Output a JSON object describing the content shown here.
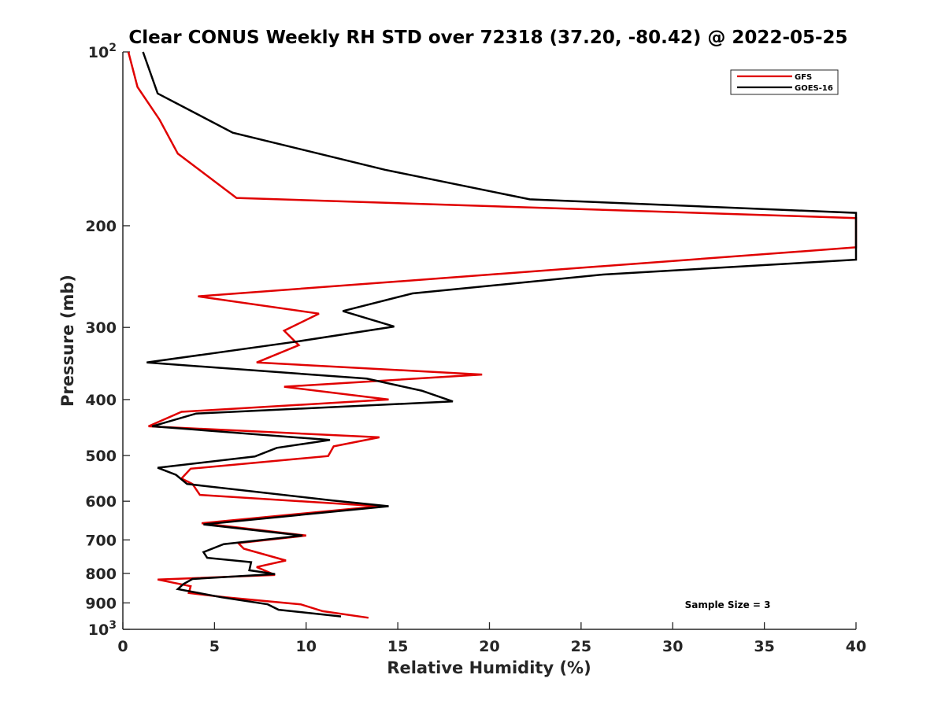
{
  "chart_data": {
    "type": "line",
    "title": "Clear CONUS Weekly RH STD over 72318 (37.20, -80.42) @ 2022-05-25",
    "xlabel": "Relative Humidity (%)",
    "ylabel": "Pressure (mb)",
    "xlim": [
      0,
      40
    ],
    "ylim": [
      100,
      1000
    ],
    "y_scale": "log",
    "y_reversed": true,
    "grid": false,
    "x_ticks": [
      "0",
      "5",
      "10",
      "15",
      "20",
      "25",
      "30",
      "35",
      "40"
    ],
    "y_ticks": [
      {
        "value": 100,
        "base": "10",
        "exp": "2"
      },
      {
        "value": 200,
        "label": "200"
      },
      {
        "value": 300,
        "label": "300"
      },
      {
        "value": 400,
        "label": "400"
      },
      {
        "value": 500,
        "label": "500"
      },
      {
        "value": 600,
        "label": "600"
      },
      {
        "value": 700,
        "label": "700"
      },
      {
        "value": 800,
        "label": "800"
      },
      {
        "value": 900,
        "label": "900"
      },
      {
        "value": 1000,
        "base": "10",
        "exp": "3"
      }
    ],
    "legend_position": "top-right",
    "series": [
      {
        "name": "GFS",
        "color": "#e00000",
        "points": [
          [
            0.3,
            100
          ],
          [
            0.8,
            115
          ],
          [
            2.0,
            131
          ],
          [
            3.0,
            150
          ],
          [
            6.2,
            179
          ],
          [
            40,
            194
          ],
          [
            40,
            218
          ],
          [
            4.1,
            265
          ],
          [
            10.7,
            284
          ],
          [
            8.8,
            304
          ],
          [
            9.6,
            322
          ],
          [
            7.3,
            345
          ],
          [
            19.6,
            362
          ],
          [
            8.8,
            380
          ],
          [
            14.5,
            400
          ],
          [
            3.2,
            420
          ],
          [
            1.4,
            445
          ],
          [
            14.0,
            465
          ],
          [
            11.5,
            482
          ],
          [
            11.2,
            501
          ],
          [
            3.7,
            527
          ],
          [
            3.2,
            548
          ],
          [
            3.8,
            560
          ],
          [
            4.2,
            585
          ],
          [
            14.0,
            612
          ],
          [
            4.3,
            655
          ],
          [
            10.0,
            688
          ],
          [
            6.3,
            709
          ],
          [
            6.6,
            725
          ],
          [
            8.9,
            760
          ],
          [
            7.3,
            780
          ],
          [
            8.3,
            805
          ],
          [
            1.9,
            820
          ],
          [
            3.7,
            842
          ],
          [
            3.6,
            865
          ],
          [
            5.6,
            880
          ],
          [
            9.7,
            905
          ],
          [
            10.9,
            930
          ],
          [
            13.4,
            955
          ]
        ]
      },
      {
        "name": "GOES-16",
        "color": "#000000",
        "points": [
          [
            1.1,
            100
          ],
          [
            1.9,
            118
          ],
          [
            6.0,
            138
          ],
          [
            14.3,
            160
          ],
          [
            22.2,
            180
          ],
          [
            40,
            190
          ],
          [
            40,
            229
          ],
          [
            26.2,
            243
          ],
          [
            15.8,
            262
          ],
          [
            12.0,
            281
          ],
          [
            14.8,
            299
          ],
          [
            9.6,
            317
          ],
          [
            1.3,
            345
          ],
          [
            13.3,
            368
          ],
          [
            16.3,
            386
          ],
          [
            18.0,
            403
          ],
          [
            4.0,
            423
          ],
          [
            1.6,
            445
          ],
          [
            11.3,
            470
          ],
          [
            8.4,
            485
          ],
          [
            7.2,
            502
          ],
          [
            1.9,
            525
          ],
          [
            2.9,
            540
          ],
          [
            3.5,
            560
          ],
          [
            11.4,
            598
          ],
          [
            14.5,
            612
          ],
          [
            4.4,
            658
          ],
          [
            9.8,
            688
          ],
          [
            5.5,
            712
          ],
          [
            4.4,
            735
          ],
          [
            4.6,
            752
          ],
          [
            7.0,
            765
          ],
          [
            6.9,
            790
          ],
          [
            8.3,
            802
          ],
          [
            3.8,
            818
          ],
          [
            3.3,
            835
          ],
          [
            3.0,
            852
          ],
          [
            5.4,
            880
          ],
          [
            7.9,
            905
          ],
          [
            8.5,
            925
          ],
          [
            11.9,
            950
          ]
        ]
      }
    ],
    "annotations": [
      {
        "text": "Sample Size = 3",
        "x": 33.0,
        "y": 905
      }
    ]
  }
}
